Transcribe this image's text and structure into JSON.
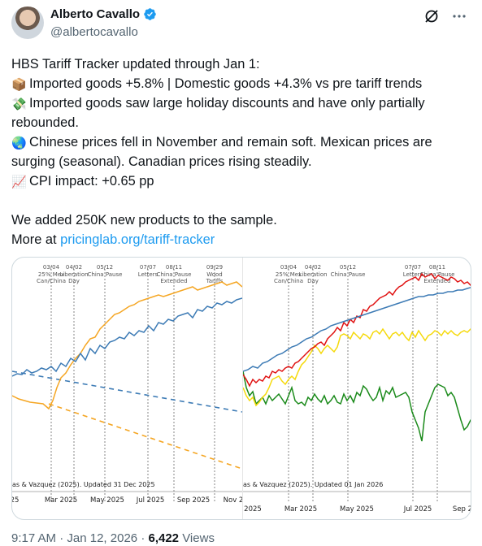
{
  "author": {
    "name": "Alberto Cavallo",
    "handle": "@albertocavallo"
  },
  "tweet": {
    "line1": "HBS Tariff Tracker updated through Jan 1:",
    "line2": "Imported goods +5.8% | Domestic goods +4.3% vs pre tariff trends",
    "line3": "Imported goods saw large holiday discounts and have only partially rebounded.",
    "line4": "Chinese prices fell in November and remain soft. Mexican prices are surging (seasonal). Canadian prices rising steadily.",
    "line5": "CPI impact: +0.65 pp",
    "line6": "We added 250K new products to the sample.",
    "line7_prefix": "More at ",
    "line7_link": "pricinglab.org/tariff-tracker"
  },
  "icons": {
    "line2": "package-icon",
    "line3": "money-with-wings-icon",
    "line4": "globe-icon",
    "line5": "chart-increasing-icon"
  },
  "left_chart": {
    "events": [
      {
        "date": "03/04",
        "label": "25% Mex\nCan/China"
      },
      {
        "date": "04/02",
        "label": "Liberation\nDay"
      },
      {
        "date": "05/12",
        "label": "China Pause"
      },
      {
        "date": "07/07",
        "label": "Letters"
      },
      {
        "date": "08/11",
        "label": "China Pause\nExtended"
      },
      {
        "date": "09/29",
        "label": "Wood\nTariffs"
      }
    ],
    "source": "as & Vazquez (2025). Updated 31 Dec 2025",
    "x_ticks": [
      "25",
      "Mar 2025",
      "May 2025",
      "Jul 2025",
      "Sep 2025",
      "Nov 2"
    ]
  },
  "right_chart": {
    "events": [
      {
        "date": "03/04",
        "label": "25% Mex\nCan/China"
      },
      {
        "date": "04/02",
        "label": "Liberation\nDay"
      },
      {
        "date": "05/12",
        "label": "China Pause"
      },
      {
        "date": "07/07",
        "label": "Letters"
      },
      {
        "date": "08/11",
        "label": "China Pause\nExtended"
      }
    ],
    "source": "as & Vazquez (2025). Updated 01 Jan 2026",
    "x_ticks": [
      "2025",
      "Mar 2025",
      "May 2025",
      "Jul 2025",
      "Sep 2"
    ]
  },
  "colors": {
    "imported": "#f5a623",
    "domestic": "#3d7bb5",
    "mexico": "#e01010",
    "canada": "#f5d90a",
    "china": "#1a8a1a",
    "link": "#1d9bf0",
    "verified": "#1d9bf0"
  },
  "meta": {
    "time": "9:17 AM",
    "dot": "·",
    "date": "Jan 12, 2026",
    "sep": "·",
    "views_count": "6,422",
    "views_label": "Views"
  }
}
